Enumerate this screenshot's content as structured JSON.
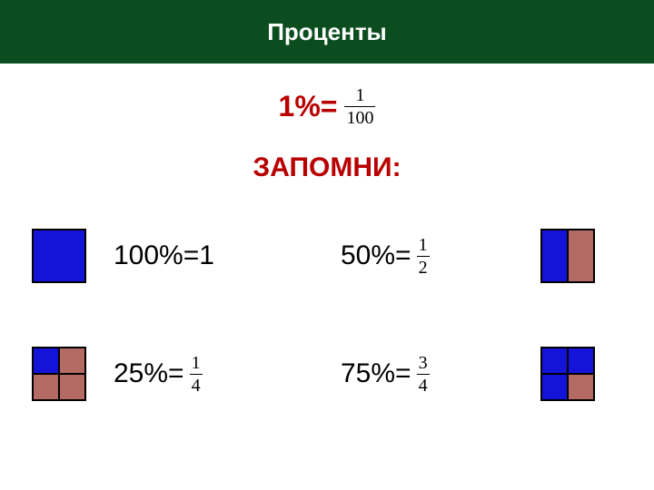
{
  "header": {
    "title": "Проценты",
    "background_color": "#0b4d1e",
    "text_color": "#ffffff"
  },
  "definition": {
    "label": "1%=",
    "label_color": "#b80000",
    "fraction": {
      "numerator": "1",
      "denominator": "100"
    },
    "fraction_fontsize": 20
  },
  "subtitle": {
    "text": "ЗАПОМНИ:",
    "color": "#b80000"
  },
  "colors": {
    "filled": "#1414d8",
    "unfilled": "#b36b63",
    "border": "#000000"
  },
  "items": [
    {
      "label": "100%=1",
      "fraction": null,
      "diagram_side": "left",
      "diagram_type": "full",
      "cells": [
        "filled"
      ]
    },
    {
      "label": "50%=",
      "fraction": {
        "numerator": "1",
        "denominator": "2"
      },
      "diagram_side": "right",
      "diagram_type": "half",
      "cells": [
        "filled",
        "unfilled"
      ]
    },
    {
      "label": "25%=",
      "fraction": {
        "numerator": "1",
        "denominator": "4"
      },
      "diagram_side": "left",
      "diagram_type": "quarter",
      "cells": [
        "filled",
        "unfilled",
        "unfilled",
        "unfilled"
      ]
    },
    {
      "label": "75%=",
      "fraction": {
        "numerator": "3",
        "denominator": "4"
      },
      "diagram_side": "right",
      "diagram_type": "quarter",
      "cells": [
        "filled",
        "filled",
        "filled",
        "unfilled"
      ]
    }
  ],
  "fraction_fontsize_small": 20
}
